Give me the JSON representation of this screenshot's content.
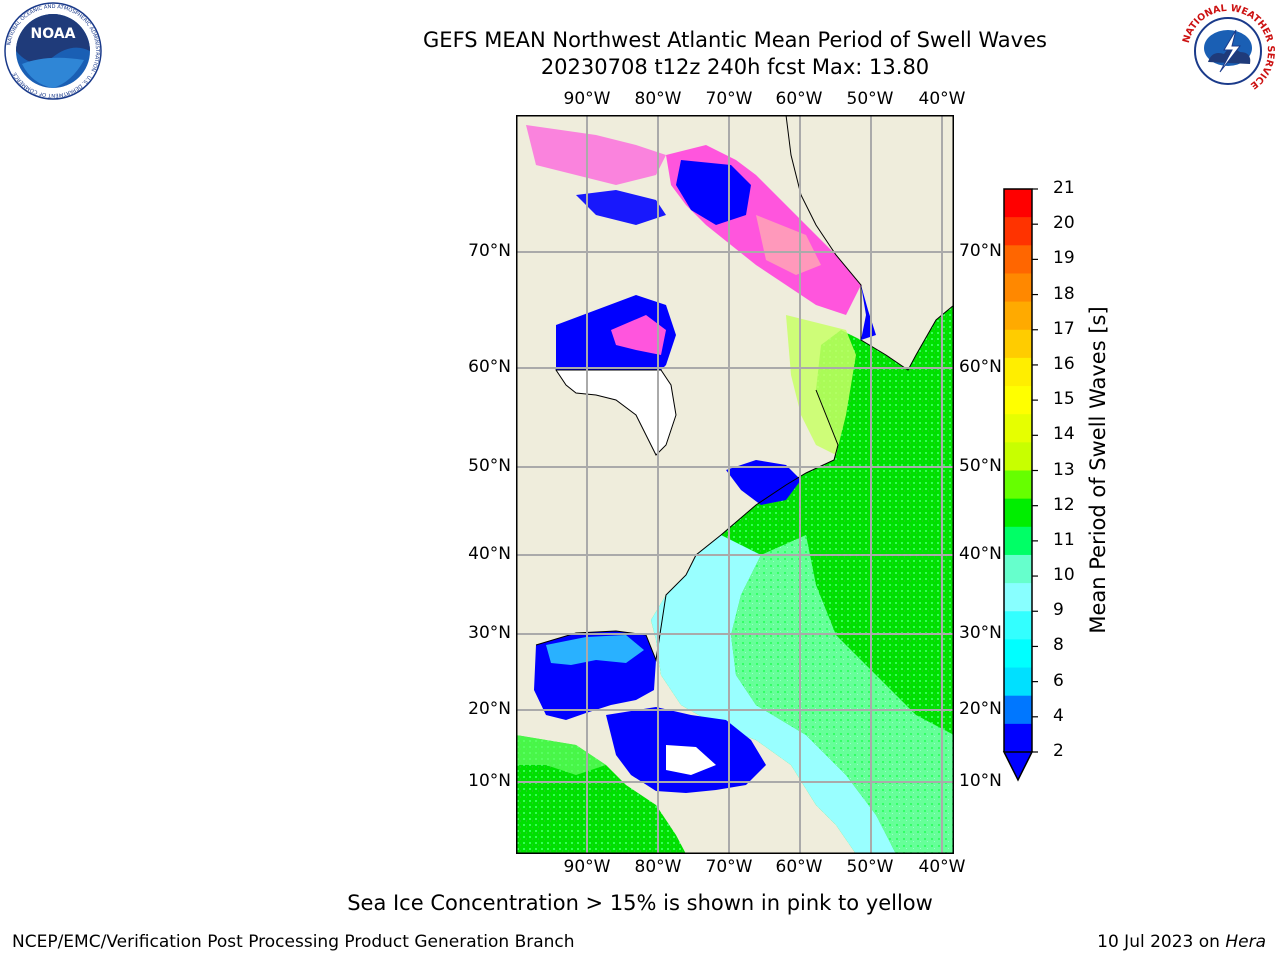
{
  "title_line1": "GEFS MEAN Northwest Atlantic Mean Period of Swell Waves",
  "title_line2": "20230708 t12z 240h fcst   Max: 13.80",
  "longitude_labels": [
    "90°W",
    "80°W",
    "70°W",
    "60°W",
    "50°W",
    "40°W"
  ],
  "latitude_labels": [
    "70°N",
    "60°N",
    "50°N",
    "40°N",
    "30°N",
    "20°N",
    "10°N"
  ],
  "colorbar": {
    "label": "Mean Period of Swell Waves [s]",
    "ticks": [
      "21",
      "20",
      "19",
      "18",
      "17",
      "16",
      "15",
      "14",
      "13",
      "12",
      "11",
      "10",
      "9",
      "8",
      "6",
      "4",
      "2"
    ],
    "colors": [
      "#ff0000",
      "#ff3300",
      "#ff6600",
      "#ff8800",
      "#ffaa00",
      "#ffcc00",
      "#ffee00",
      "#ffff00",
      "#e6ff00",
      "#c8ff00",
      "#66ff00",
      "#00ee00",
      "#00ff66",
      "#66ffcc",
      "#88ffff",
      "#33ffff",
      "#00ffff",
      "#00e0ff",
      "#0077ff",
      "#0000ff"
    ]
  },
  "note": "Sea Ice Concentration > 15% is shown in pink to yellow",
  "footer_left": "NCEP/EMC/Verification Post Processing Product Generation Branch",
  "footer_date": "10 Jul 2023 on",
  "footer_host": "Hera",
  "logos": {
    "noaa": {
      "text": "NOAA",
      "ring_text": "NATIONAL OCEANIC AND ATMOSPHERIC ADMINISTRATION · U.S. DEPARTMENT OF COMMERCE"
    },
    "nws": {
      "ring_text": "NATIONAL WEATHER SERVICE"
    }
  },
  "colors": {
    "land": "#efeddc",
    "ocean_mid": "#00e000",
    "ocean_warm": "#66ff99",
    "ocean_cool": "#99ffff",
    "shallow": "#0000ff",
    "ice": "#ff55dd"
  }
}
